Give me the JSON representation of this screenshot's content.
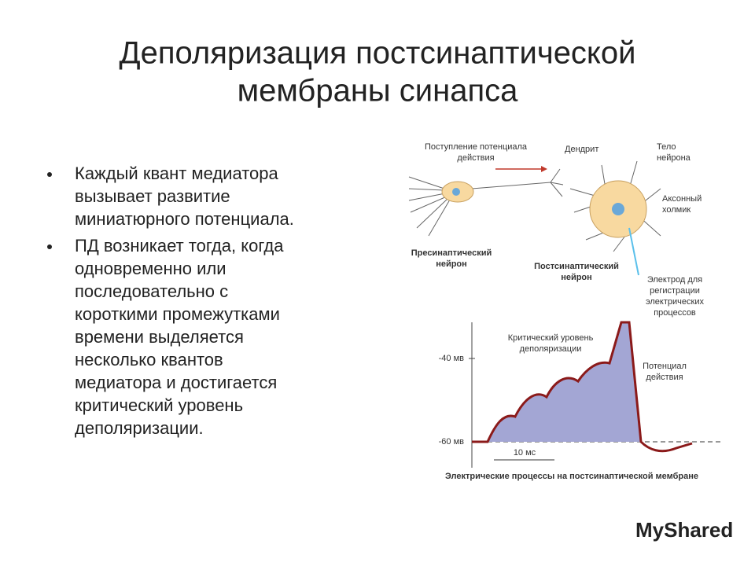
{
  "title": [
    "Деполяризация постсинаптической",
    "мембраны синапса"
  ],
  "bullets": [
    [
      "Каждый квант медиатора",
      "вызывает развитие",
      "миниатюрного потенциала."
    ],
    [
      "ПД возникает тогда, когда",
      "одновременно или",
      "последовательно с",
      "короткими промежутками",
      "времени выделяется",
      "несколько квантов",
      "медиатора и достигается",
      "критический уровень",
      "деполяризации."
    ]
  ],
  "figure": {
    "arrow_label": [
      "Поступление потенциала",
      "действия"
    ],
    "dendrite": "Дендрит",
    "neuron_body": [
      "Тело",
      "нейрона"
    ],
    "axon_hillock": [
      "Аксонный",
      "холмик"
    ],
    "presynaptic": [
      "Пресинаптический",
      "нейрон"
    ],
    "postsynaptic": [
      "Постсинаптический",
      "нейрон"
    ],
    "electrode": [
      "Электрод для",
      "регистрации",
      "электрических",
      "процессов"
    ],
    "critical_level": [
      "Критический уровень",
      "деполяризации"
    ],
    "action_potential": [
      "Потенциал",
      "действия"
    ],
    "tick_40": "-40 мв",
    "tick_60": "-60 мв",
    "scale": "10 мс",
    "caption": "Электрические процессы на постсинаптической мембране"
  },
  "watermark": "MyShared"
}
